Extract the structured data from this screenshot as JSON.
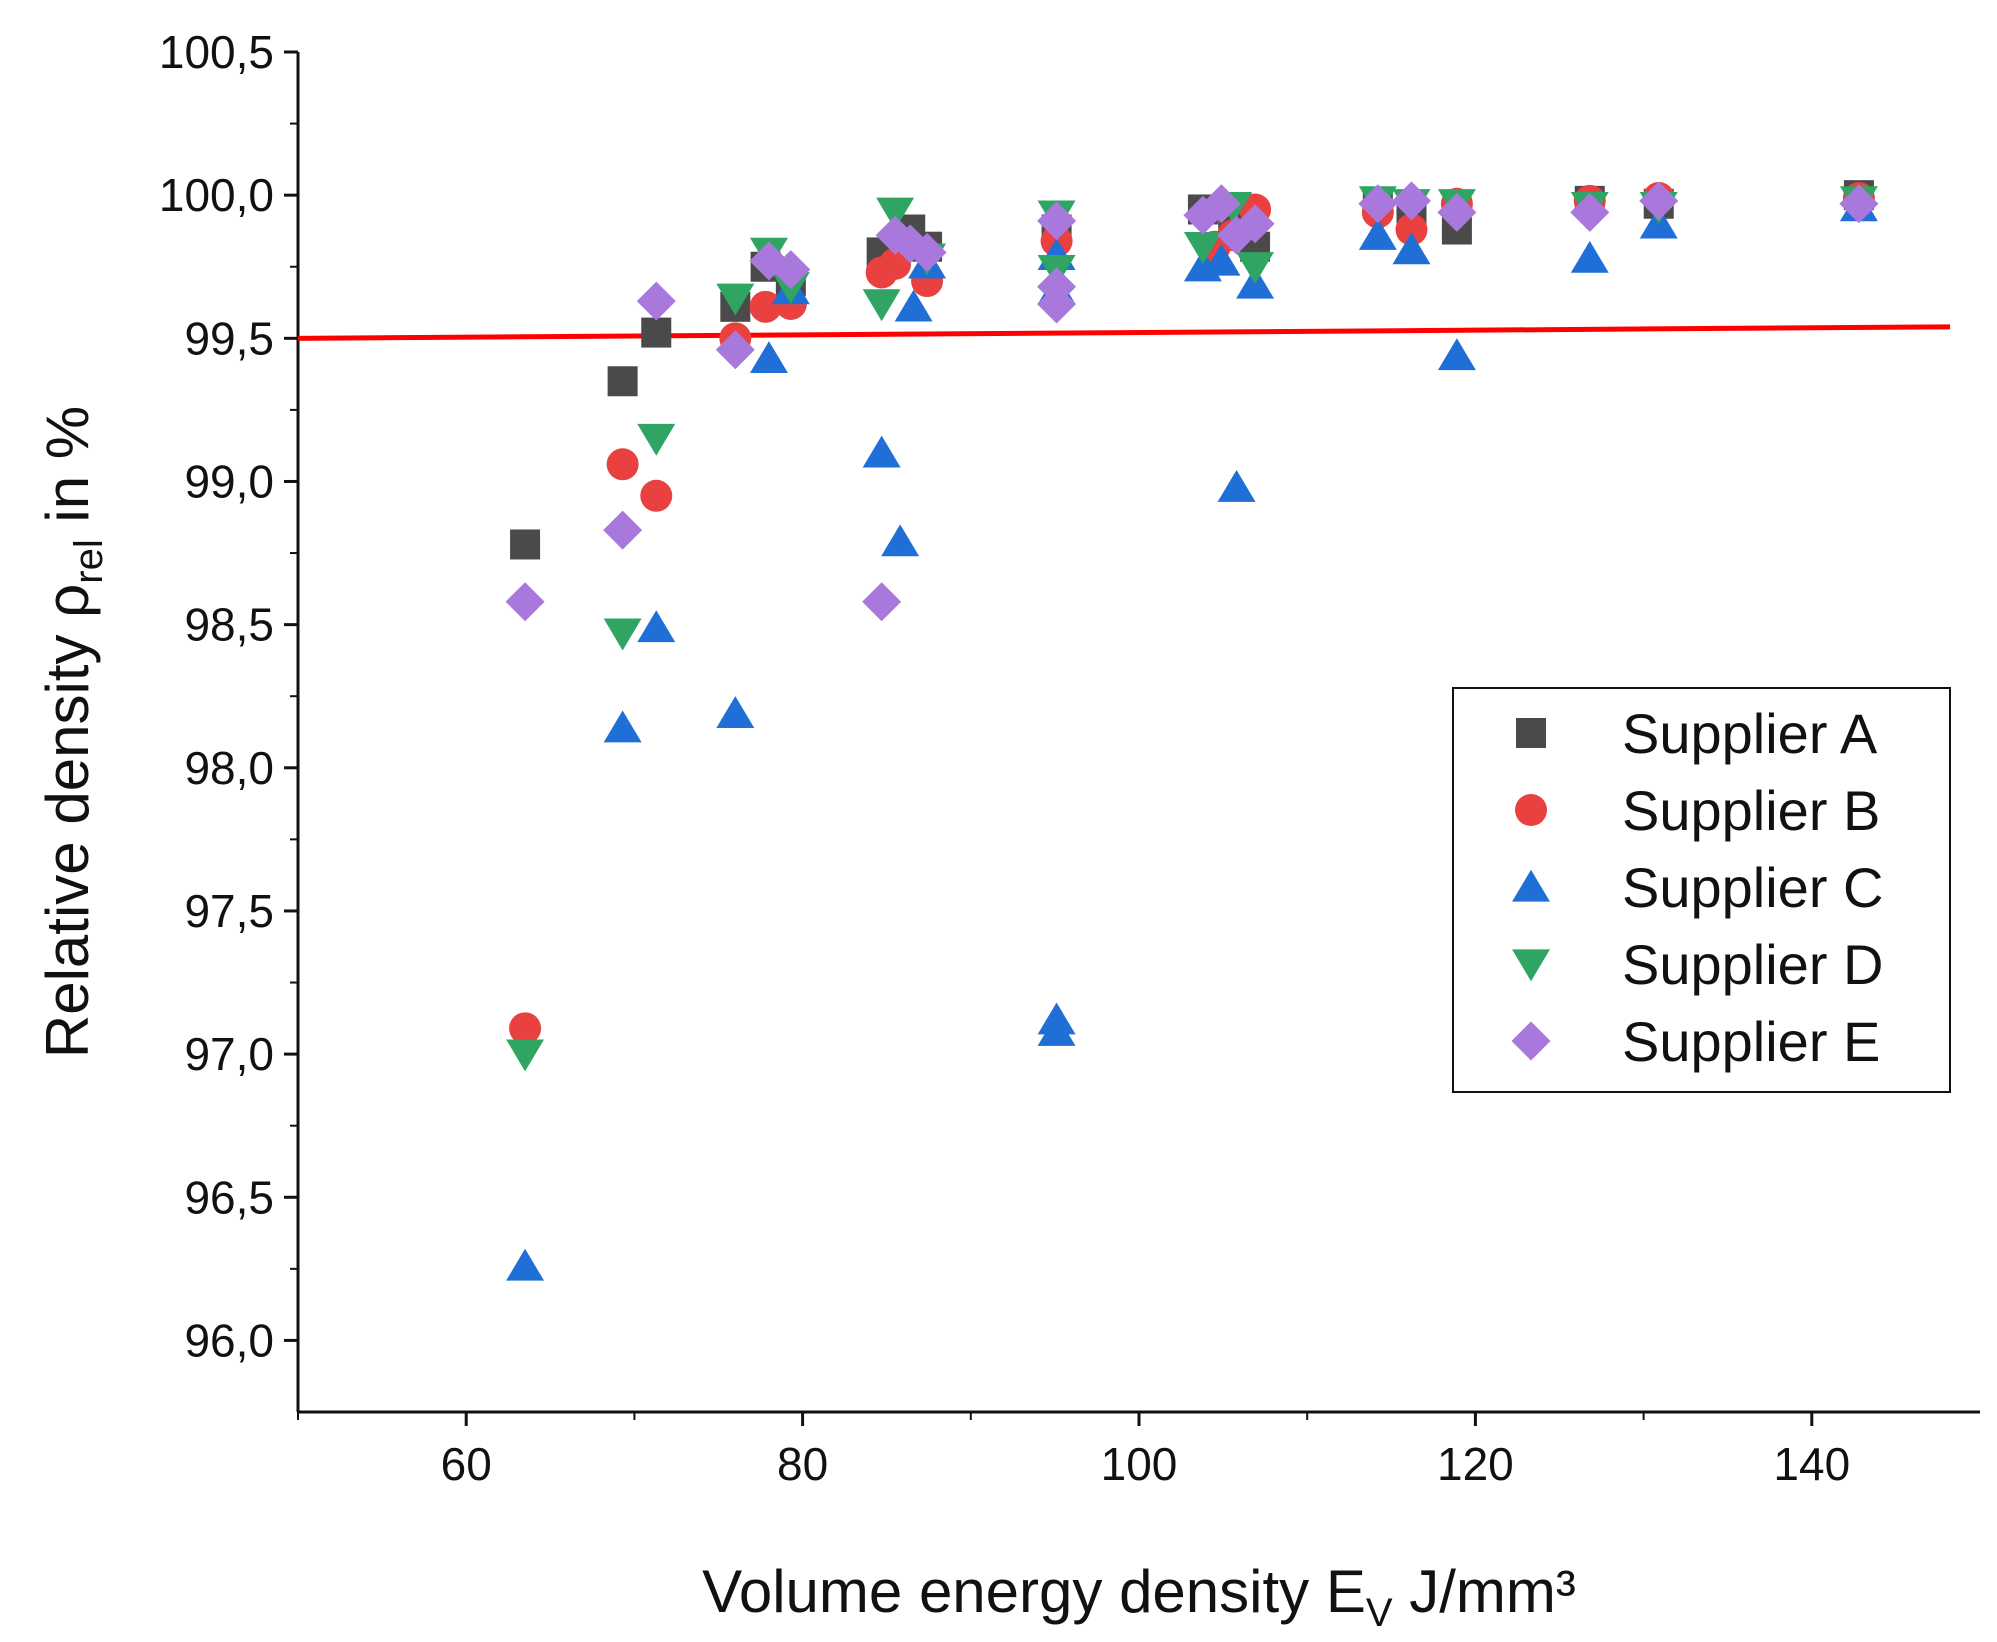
{
  "chart_data": {
    "type": "scatter",
    "title": "",
    "xlabel_main": "Volume energy density E",
    "xlabel_sub": "V",
    "xlabel_unit": " J/mm³",
    "ylabel_main": "Relative density ρ",
    "ylabel_sub": "rel",
    "ylabel_unit": " in %",
    "xlim": [
      50,
      150
    ],
    "ylim": [
      95.75,
      100.5
    ],
    "x_ticks": [
      60,
      80,
      100,
      120,
      140
    ],
    "x_tick_labels": [
      "60",
      "80",
      "100",
      "120",
      "140"
    ],
    "y_ticks": [
      96.0,
      96.5,
      97.0,
      97.5,
      98.0,
      98.5,
      99.0,
      99.5,
      100.0,
      100.5
    ],
    "y_tick_labels": [
      "96,0",
      "96,5",
      "97,0",
      "97,5",
      "98,0",
      "98,5",
      "99,0",
      "99,5",
      "100,0",
      "100,5"
    ],
    "highlight_tick": "99,5",
    "highlight_color": "#ff0000",
    "reference_line": {
      "y_start": 99.5,
      "y_end": 99.54,
      "color": "#ff0000"
    },
    "legend_position": "right-middle",
    "grid": false,
    "series": [
      {
        "name": "Supplier A",
        "marker": "square",
        "color": "#4a4a4a",
        "points": [
          [
            63.5,
            98.78
          ],
          [
            69.3,
            99.35
          ],
          [
            71.3,
            99.52
          ],
          [
            76.0,
            99.61
          ],
          [
            77.8,
            99.75
          ],
          [
            79.3,
            99.7
          ],
          [
            84.7,
            99.8
          ],
          [
            86.4,
            99.88
          ],
          [
            87.4,
            99.82
          ],
          [
            95.1,
            99.88
          ],
          [
            103.8,
            99.95
          ],
          [
            105.6,
            99.9
          ],
          [
            106.9,
            99.82
          ],
          [
            114.2,
            99.97
          ],
          [
            116.2,
            99.95
          ],
          [
            118.9,
            99.88
          ],
          [
            126.8,
            99.98
          ],
          [
            130.9,
            99.97
          ],
          [
            142.8,
            100.0
          ]
        ]
      },
      {
        "name": "Supplier B",
        "marker": "circle",
        "color": "#e94040",
        "points": [
          [
            63.5,
            97.09
          ],
          [
            69.3,
            99.06
          ],
          [
            71.3,
            98.95
          ],
          [
            76.0,
            99.5
          ],
          [
            77.8,
            99.61
          ],
          [
            79.3,
            99.62
          ],
          [
            84.7,
            99.73
          ],
          [
            85.5,
            99.76
          ],
          [
            87.4,
            99.7
          ],
          [
            95.1,
            99.84
          ],
          [
            104.5,
            99.82
          ],
          [
            105.6,
            99.86
          ],
          [
            106.9,
            99.95
          ],
          [
            114.2,
            99.94
          ],
          [
            116.2,
            99.88
          ],
          [
            118.9,
            99.97
          ],
          [
            126.8,
            99.98
          ],
          [
            130.9,
            99.99
          ],
          [
            142.8,
            99.99
          ]
        ]
      },
      {
        "name": "Supplier C",
        "marker": "triangle-up",
        "color": "#1f6fd6",
        "points": [
          [
            63.5,
            96.26
          ],
          [
            69.3,
            98.14
          ],
          [
            71.3,
            98.49
          ],
          [
            76.0,
            98.19
          ],
          [
            78.0,
            99.43
          ],
          [
            79.3,
            99.67
          ],
          [
            84.7,
            99.1
          ],
          [
            85.8,
            98.79
          ],
          [
            86.6,
            99.61
          ],
          [
            87.4,
            99.76
          ],
          [
            95.1,
            97.12
          ],
          [
            95.1,
            97.08
          ],
          [
            95.1,
            99.67
          ],
          [
            95.1,
            99.79
          ],
          [
            103.8,
            99.75
          ],
          [
            104.9,
            99.77
          ],
          [
            105.8,
            98.98
          ],
          [
            106.9,
            99.69
          ],
          [
            114.2,
            99.86
          ],
          [
            116.2,
            99.81
          ],
          [
            118.9,
            99.44
          ],
          [
            126.8,
            99.78
          ],
          [
            130.9,
            99.9
          ],
          [
            142.8,
            99.96
          ]
        ]
      },
      {
        "name": "Supplier D",
        "marker": "triangle-down",
        "color": "#2fa463",
        "points": [
          [
            63.5,
            97.0
          ],
          [
            69.3,
            98.47
          ],
          [
            71.3,
            99.15
          ],
          [
            76.0,
            99.64
          ],
          [
            78.0,
            99.8
          ],
          [
            79.3,
            99.68
          ],
          [
            84.7,
            99.62
          ],
          [
            85.5,
            99.94
          ],
          [
            87.4,
            99.78
          ],
          [
            95.1,
            99.93
          ],
          [
            95.1,
            99.74
          ],
          [
            103.8,
            99.82
          ],
          [
            105.6,
            99.96
          ],
          [
            106.9,
            99.75
          ],
          [
            114.2,
            99.98
          ],
          [
            116.2,
            99.97
          ],
          [
            118.9,
            99.97
          ],
          [
            126.8,
            99.96
          ],
          [
            130.9,
            99.96
          ],
          [
            142.8,
            99.98
          ]
        ]
      },
      {
        "name": "Supplier E",
        "marker": "diamond",
        "color": "#a878dc",
        "points": [
          [
            63.5,
            98.58
          ],
          [
            69.3,
            98.83
          ],
          [
            71.3,
            99.63
          ],
          [
            76.0,
            99.46
          ],
          [
            78.0,
            99.77
          ],
          [
            79.3,
            99.74
          ],
          [
            84.7,
            98.58
          ],
          [
            85.5,
            99.86
          ],
          [
            86.4,
            99.83
          ],
          [
            87.4,
            99.8
          ],
          [
            95.1,
            99.91
          ],
          [
            95.1,
            99.68
          ],
          [
            95.1,
            99.62
          ],
          [
            103.8,
            99.93
          ],
          [
            104.9,
            99.97
          ],
          [
            105.8,
            99.86
          ],
          [
            106.9,
            99.9
          ],
          [
            114.2,
            99.97
          ],
          [
            116.2,
            99.98
          ],
          [
            118.9,
            99.94
          ],
          [
            126.8,
            99.94
          ],
          [
            130.9,
            99.98
          ],
          [
            142.8,
            99.97
          ]
        ]
      }
    ]
  }
}
